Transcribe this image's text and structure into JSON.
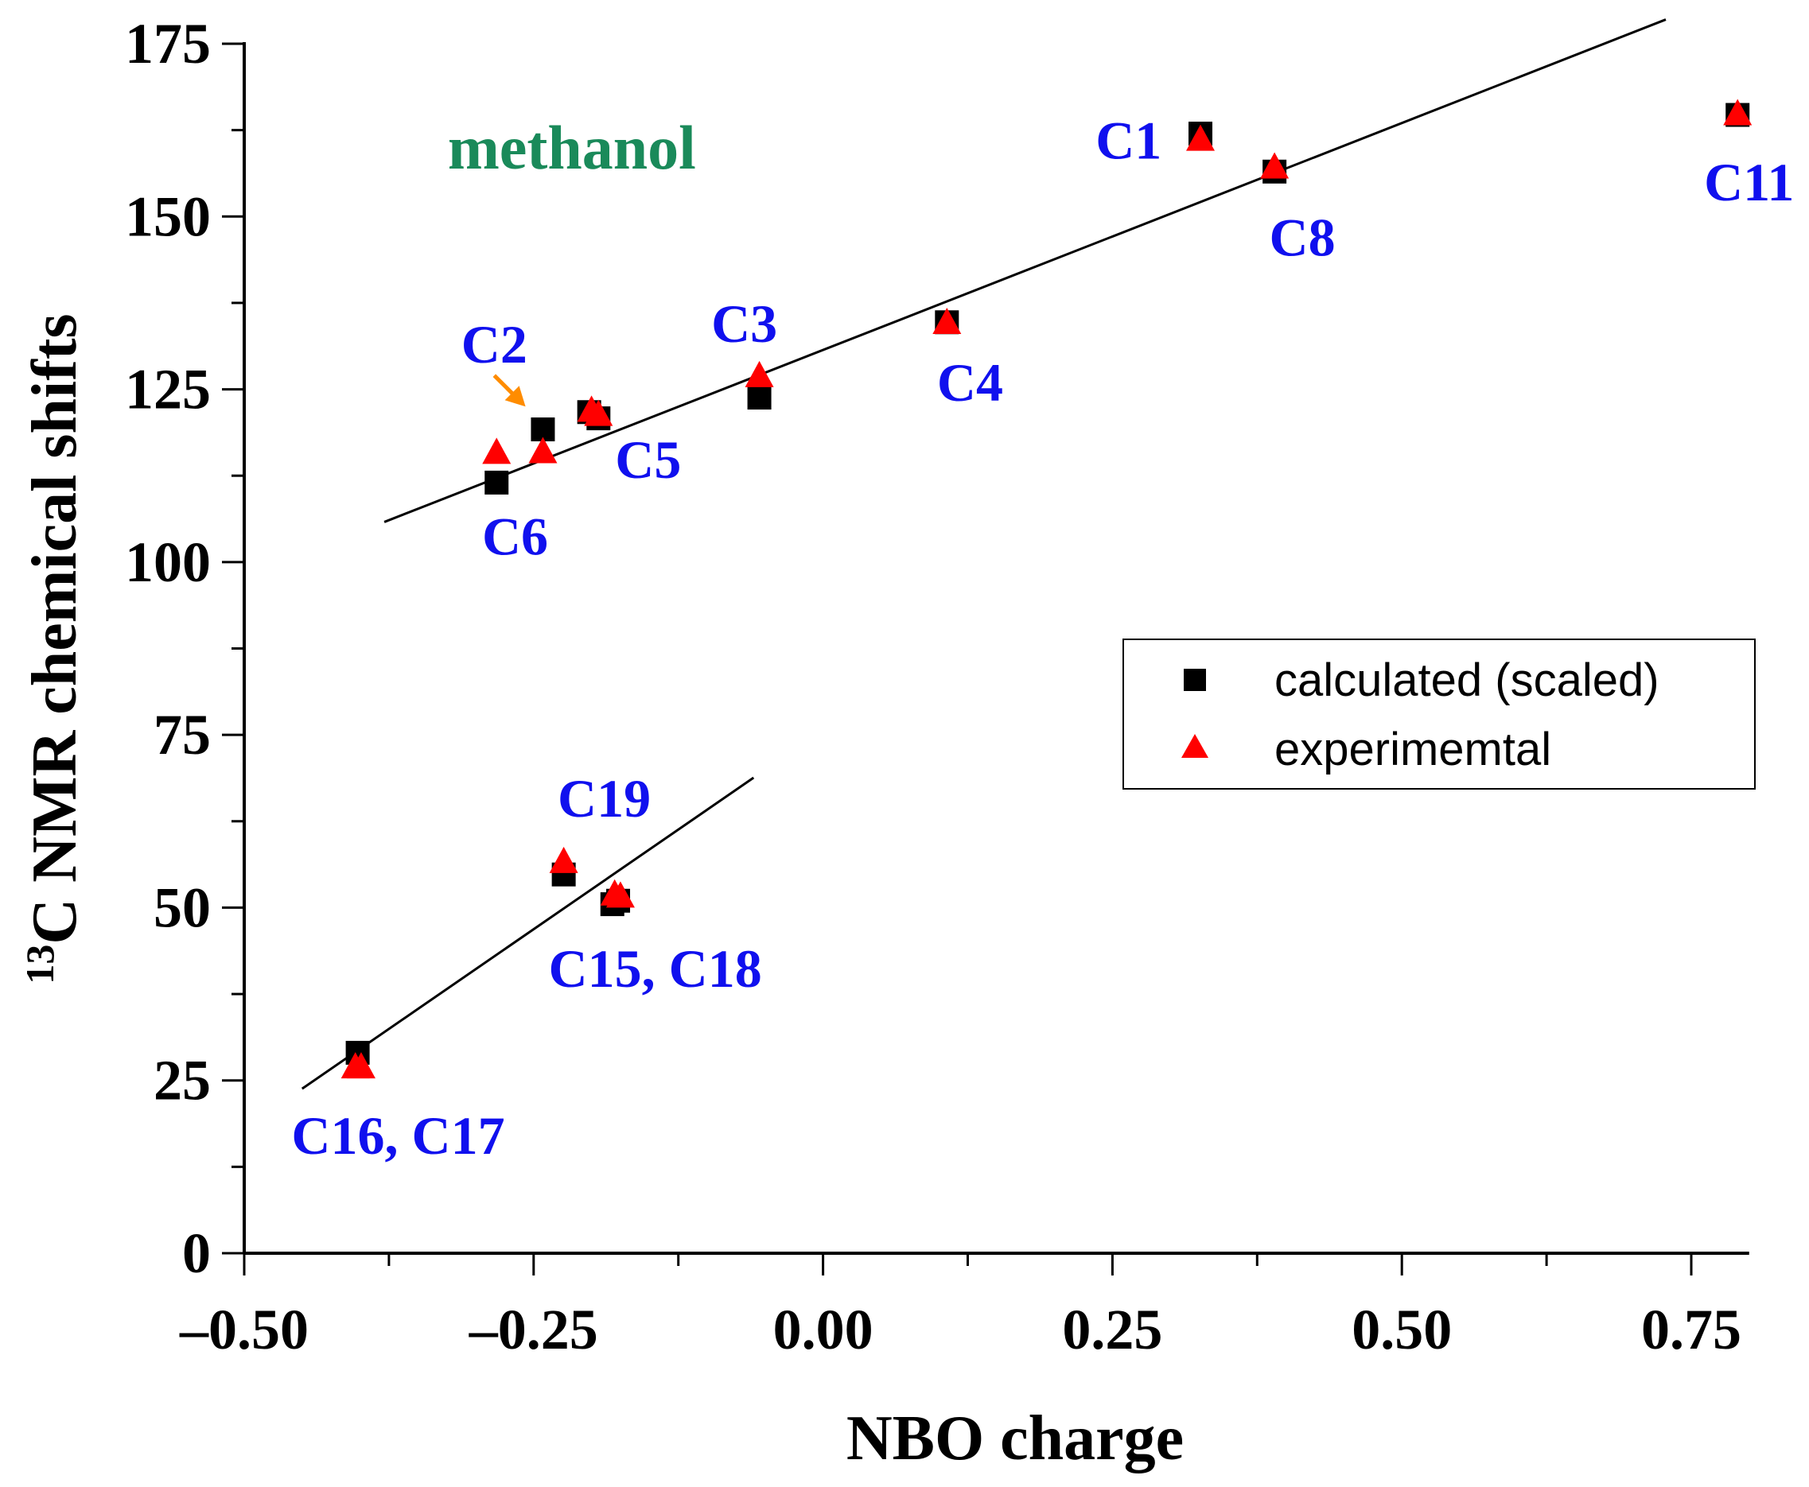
{
  "chart_data": {
    "type": "scatter",
    "title": "",
    "xlabel": "NBO charge",
    "ylabel_sup": "13",
    "ylabel": "C NMR chemical shifts",
    "xlim": [
      -0.5,
      0.8
    ],
    "ylim": [
      0,
      175
    ],
    "xticks": [
      -0.5,
      -0.25,
      0.0,
      0.25,
      0.5,
      0.75
    ],
    "xtick_labels": [
      "-0.50",
      "-0.25",
      "0.00",
      "0.25",
      "0.50",
      "0.75"
    ],
    "yticks": [
      0,
      25,
      50,
      75,
      100,
      125,
      150,
      175
    ],
    "ytick_labels": [
      "0",
      "25",
      "50",
      "75",
      "100",
      "125",
      "150",
      "175"
    ],
    "grid": false,
    "legend_placement": "center-right",
    "series": [
      {
        "name": "calculated (scaled)",
        "marker": "square",
        "color": "#000000",
        "points": [
          [
            -0.282,
            111.5
          ],
          [
            -0.242,
            119.2
          ],
          [
            -0.202,
            121.7
          ],
          [
            -0.194,
            120.8
          ],
          [
            -0.055,
            123.8
          ],
          [
            0.107,
            134.7
          ],
          [
            0.326,
            162.0
          ],
          [
            0.39,
            156.5
          ],
          [
            0.79,
            164.7
          ],
          [
            -0.224,
            54.8
          ],
          [
            -0.182,
            50.5
          ],
          [
            -0.177,
            51.0
          ],
          [
            -0.402,
            29.0
          ]
        ]
      },
      {
        "name": "experimemtal",
        "marker": "triangle",
        "color": "#ff0000",
        "points": [
          [
            -0.282,
            115.7
          ],
          [
            -0.242,
            115.8
          ],
          [
            -0.2,
            121.8
          ],
          [
            -0.194,
            121.2
          ],
          [
            -0.055,
            126.8
          ],
          [
            0.107,
            134.5
          ],
          [
            0.326,
            161.0
          ],
          [
            0.39,
            157.0
          ],
          [
            0.79,
            164.7
          ],
          [
            -0.224,
            56.5
          ],
          [
            -0.18,
            51.8
          ],
          [
            -0.175,
            51.5
          ],
          [
            -0.404,
            26.8
          ],
          [
            -0.399,
            26.8
          ]
        ]
      }
    ],
    "fit_lines": [
      {
        "x": [
          -0.379,
          0.728
        ],
        "y": [
          105.8,
          178.5
        ]
      },
      {
        "x": [
          -0.45,
          -0.06
        ],
        "y": [
          23.8,
          68.8
        ]
      }
    ],
    "annotations": [
      {
        "text": "C1",
        "x": 0.264,
        "y": 161
      },
      {
        "text": "C8",
        "x": 0.414,
        "y": 147
      },
      {
        "text": "C11",
        "x": 0.8,
        "y": 155
      },
      {
        "text": "C2",
        "x": -0.284,
        "y": 131.5
      },
      {
        "text": "C3",
        "x": -0.068,
        "y": 134.5
      },
      {
        "text": "C4",
        "x": 0.127,
        "y": 126
      },
      {
        "text": "C5",
        "x": -0.151,
        "y": 114.8
      },
      {
        "text": "C6",
        "x": -0.266,
        "y": 103.7
      },
      {
        "text": "C19",
        "x": -0.189,
        "y": 65.8
      },
      {
        "text": "C15, C18",
        "x": -0.145,
        "y": 41.2
      },
      {
        "text": "C16, C17",
        "x": -0.367,
        "y": 17
      }
    ],
    "solvent_label": {
      "text": "methanol",
      "x": -0.217,
      "y": 160,
      "color": "#1a8a5a"
    },
    "arrow": {
      "from": [
        -0.284,
        127
      ],
      "to": [
        -0.257,
        122.5
      ],
      "color": "#ff8c00"
    }
  }
}
